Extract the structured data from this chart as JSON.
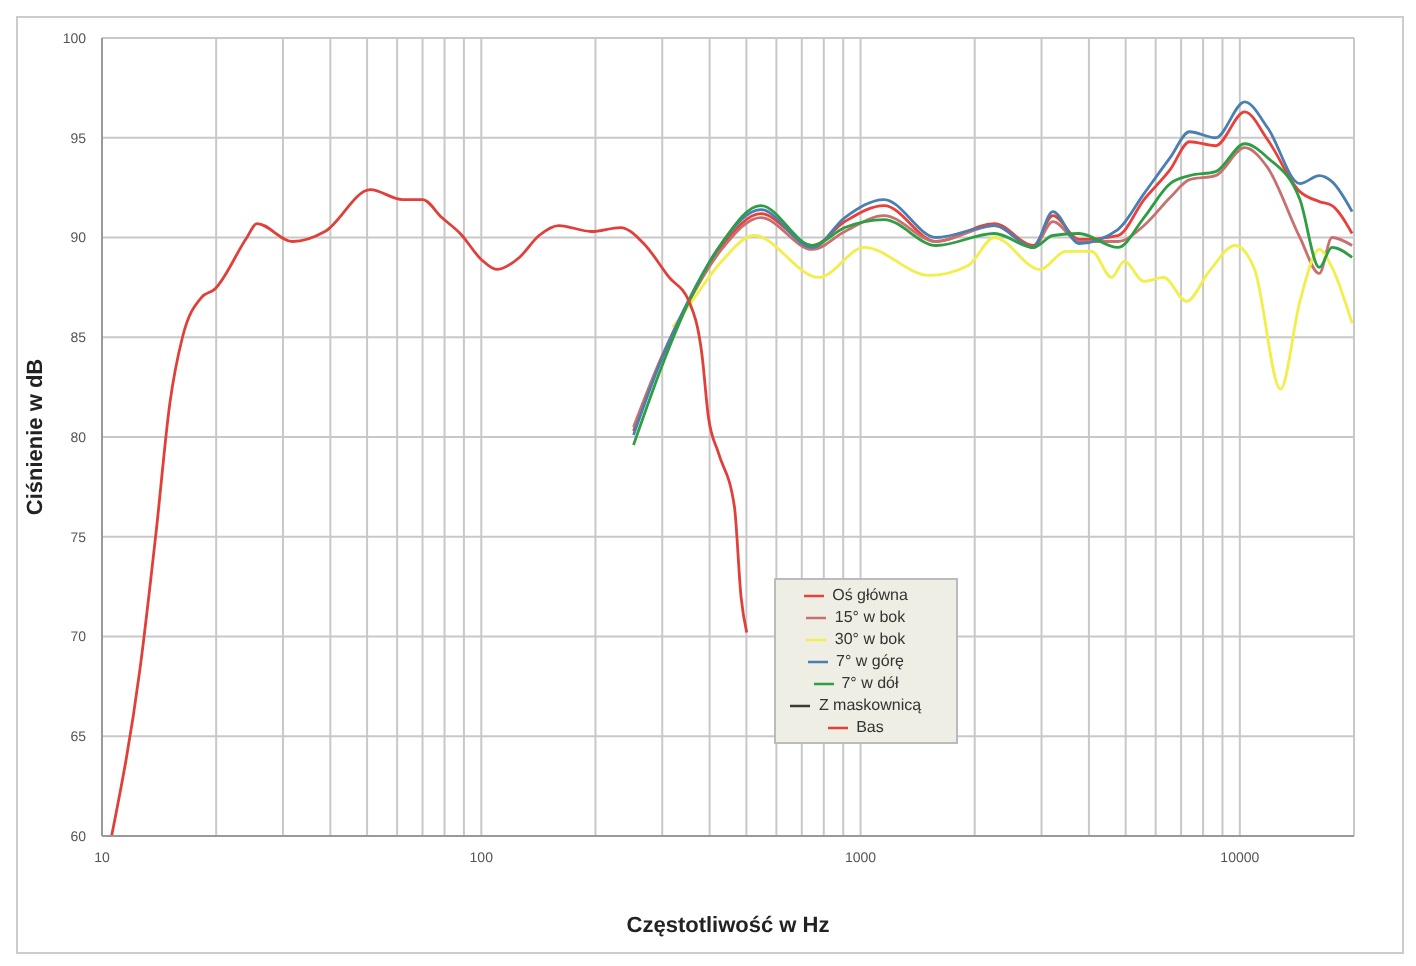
{
  "chart_data": {
    "type": "line",
    "xlabel": "Częstotliwość w Hz",
    "ylabel": "Ciśnienie w dB",
    "log": "x",
    "xlim": [
      10,
      20000
    ],
    "ylim": [
      60,
      100
    ],
    "xticks": [
      10,
      {
        "value": 20,
        "label": null
      },
      {
        "value": 30,
        "label": null
      },
      {
        "value": 40,
        "label": null
      },
      {
        "value": 50,
        "label": null
      },
      {
        "value": 60,
        "label": null
      },
      {
        "value": 70,
        "label": null
      },
      {
        "value": 80,
        "label": null
      },
      {
        "value": 90,
        "label": null
      },
      100,
      {
        "value": 200,
        "label": null
      },
      {
        "value": 300,
        "label": null
      },
      {
        "value": 400,
        "label": null
      },
      {
        "value": 500,
        "label": null
      },
      {
        "value": 600,
        "label": null
      },
      {
        "value": 700,
        "label": null
      },
      {
        "value": 800,
        "label": null
      },
      {
        "value": 900,
        "label": null
      },
      1000,
      {
        "value": 2000,
        "label": null
      },
      {
        "value": 3000,
        "label": null
      },
      {
        "value": 4000,
        "label": null
      },
      {
        "value": 5000,
        "label": null
      },
      {
        "value": 6000,
        "label": null
      },
      {
        "value": 7000,
        "label": null
      },
      {
        "value": 8000,
        "label": null
      },
      {
        "value": 9000,
        "label": null
      },
      10000,
      {
        "value": 20000,
        "label": null
      }
    ],
    "yticks": [
      60,
      65,
      70,
      75,
      80,
      85,
      90,
      95,
      100
    ],
    "grid": true,
    "legend": "center",
    "marker": "none",
    "line_style": "solid",
    "series": [
      {
        "name": "Oś główna",
        "color": "#e8413c",
        "x": [
          252,
          300,
          353,
          430,
          545,
          747,
          909,
          1153,
          1582,
          2254,
          2856,
          3215,
          3766,
          4770,
          5590,
          6550,
          7370,
          8630,
          10300,
          11840,
          14400,
          16200,
          17500,
          19770
        ],
        "values": [
          80.3,
          84.0,
          86.8,
          89.5,
          91.2,
          89.6,
          90.8,
          91.6,
          89.8,
          90.7,
          89.6,
          91.1,
          89.9,
          90.1,
          91.9,
          93.4,
          94.8,
          94.6,
          96.3,
          94.9,
          92.3,
          91.8,
          91.6,
          90.2
        ]
      },
      {
        "name": "15° w bok",
        "color": "#c87070",
        "x": [
          252,
          300,
          353,
          430,
          545,
          747,
          909,
          1153,
          1582,
          2254,
          2856,
          3215,
          3766,
          4770,
          5590,
          6550,
          7370,
          8630,
          10300,
          11840,
          14400,
          16200,
          17500,
          19770
        ],
        "values": [
          80.5,
          84.1,
          86.8,
          89.4,
          91.0,
          89.4,
          90.3,
          91.1,
          89.8,
          90.6,
          89.5,
          90.8,
          89.8,
          89.8,
          90.6,
          92.0,
          92.9,
          93.1,
          94.5,
          93.5,
          90.0,
          88.2,
          90.0,
          89.6
        ]
      },
      {
        "name": "30° w bok",
        "color": "#f2ee4a",
        "x": [
          320,
          353,
          430,
          524,
          777,
          1023,
          1518,
          1923,
          2254,
          2970,
          3480,
          4070,
          4590,
          4960,
          5590,
          6300,
          7230,
          8300,
          9710,
          10940,
          12800,
          14400,
          16200,
          17500,
          19770
        ],
        "values": [
          85.5,
          86.6,
          88.8,
          90.1,
          88.0,
          89.5,
          88.1,
          88.6,
          90.0,
          88.4,
          89.3,
          89.3,
          88.0,
          88.8,
          87.8,
          88.0,
          86.8,
          88.3,
          89.6,
          88.4,
          82.4,
          86.8,
          89.4,
          88.5,
          85.7
        ]
      },
      {
        "name": "7° w górę",
        "color": "#4a7fb0",
        "x": [
          252,
          300,
          353,
          430,
          545,
          747,
          909,
          1153,
          1582,
          2254,
          2856,
          3215,
          3766,
          4770,
          5590,
          6550,
          7370,
          8630,
          10300,
          11840,
          14400,
          16200,
          17500,
          19770
        ],
        "values": [
          80.1,
          84.0,
          86.9,
          89.7,
          91.4,
          89.5,
          91.0,
          91.9,
          90.0,
          90.6,
          89.5,
          91.3,
          89.7,
          90.4,
          92.2,
          94.0,
          95.3,
          95.0,
          96.8,
          95.5,
          92.7,
          93.1,
          92.8,
          91.3
        ]
      },
      {
        "name": "7° w dół",
        "color": "#2e9e44",
        "x": [
          252,
          300,
          353,
          430,
          545,
          747,
          909,
          1153,
          1582,
          2254,
          2856,
          3215,
          3766,
          4770,
          5590,
          6550,
          7370,
          8630,
          10300,
          11840,
          14400,
          16200,
          17500,
          19770
        ],
        "values": [
          79.6,
          83.6,
          86.8,
          89.7,
          91.6,
          89.6,
          90.5,
          90.9,
          89.6,
          90.2,
          89.5,
          90.1,
          90.2,
          89.5,
          91.0,
          92.7,
          93.1,
          93.3,
          94.7,
          94.0,
          91.9,
          88.5,
          89.5,
          89.0
        ]
      },
      {
        "name": "Z maskownicą",
        "color": "#3a3a3a"
      },
      {
        "name": "Bas",
        "color": "#e0403a",
        "x": [
          10.6,
          12.6,
          13.9,
          15.1,
          16.3,
          18.3,
          19.8,
          24.1,
          25.6,
          31.8,
          38.7,
          51,
          62,
          70,
          78.7,
          88,
          100,
          110,
          126,
          142,
          160,
          195,
          233,
          268,
          313,
          353,
          382,
          397,
          422,
          465,
          484,
          501
        ],
        "values": [
          60,
          68.4,
          75.3,
          81.7,
          85,
          87,
          87.4,
          90,
          90.7,
          89.8,
          90.3,
          92.4,
          91.9,
          91.9,
          91,
          90.2,
          88.9,
          88.4,
          89,
          90.1,
          90.6,
          90.3,
          90.5,
          89.7,
          88,
          86.8,
          84.1,
          81,
          79.2,
          76.5,
          72,
          70.2
        ]
      }
    ]
  }
}
